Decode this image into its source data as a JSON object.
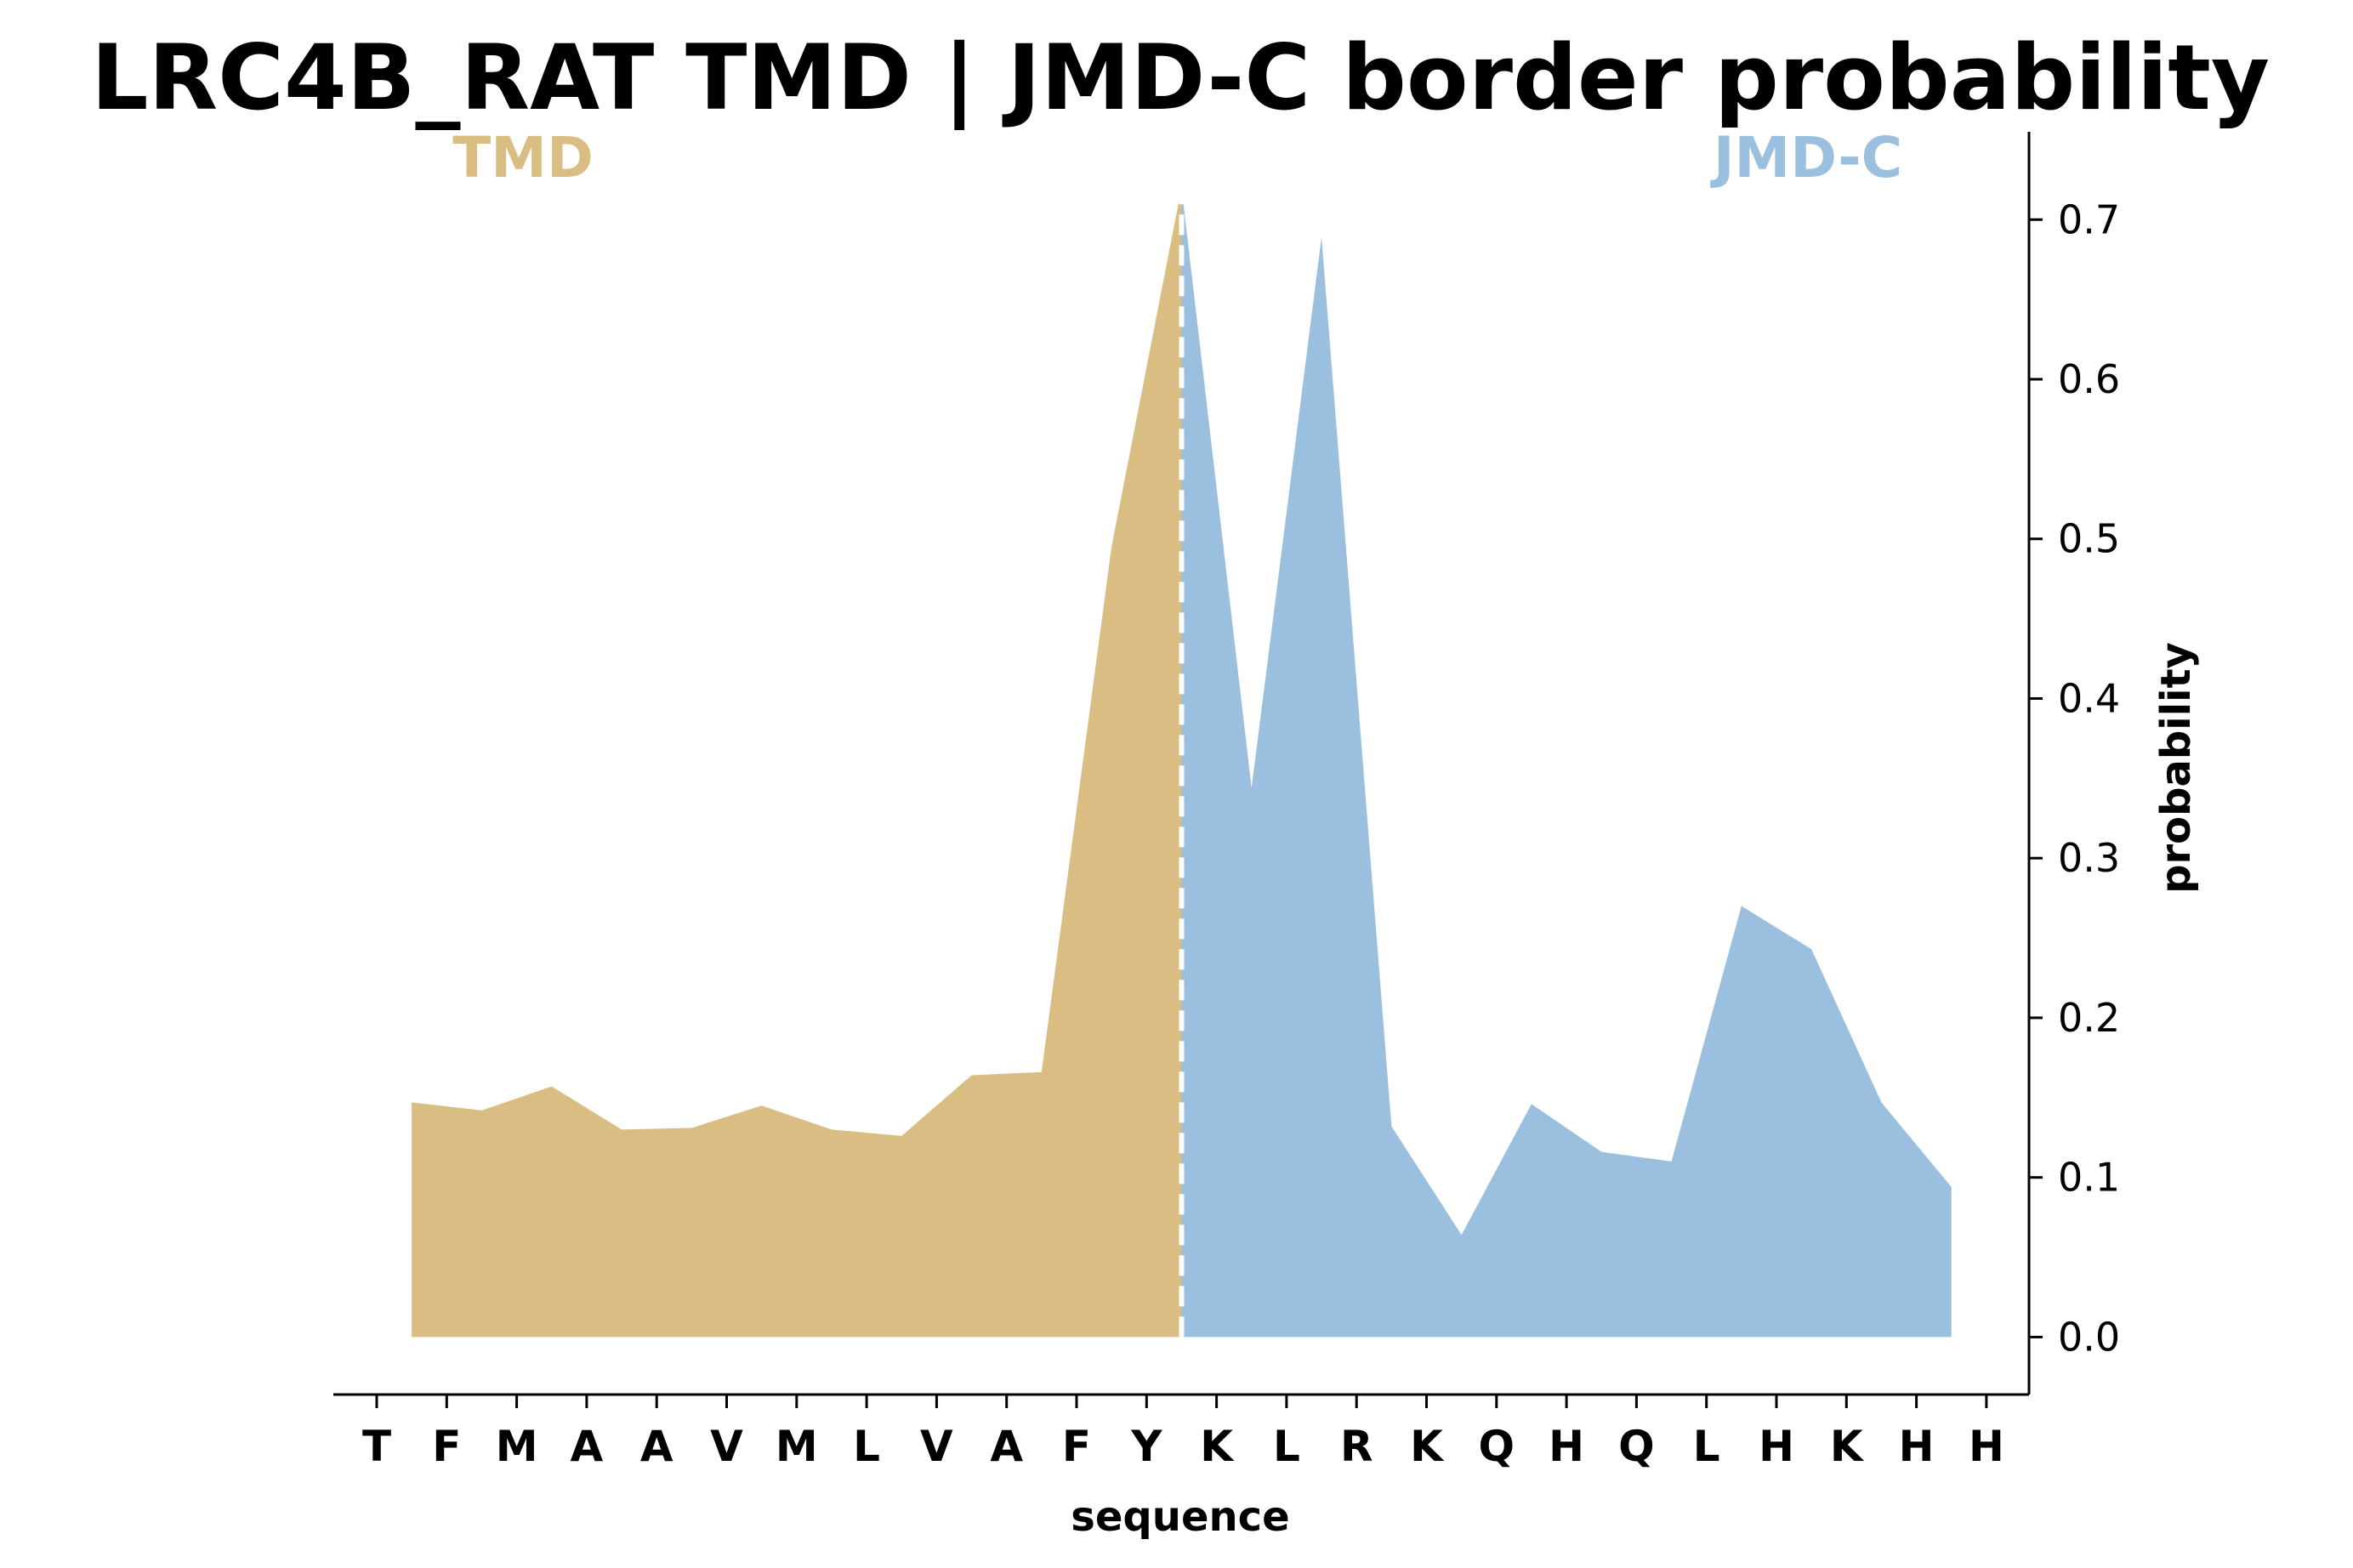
{
  "chart_data": {
    "type": "area",
    "title": "LRC4B_RAT TMD | JMD-C border probability",
    "xlabel": "sequence",
    "ylabel": "probability",
    "ylim": [
      -0.036,
      0.755
    ],
    "yticks": [
      "0.0",
      "0.1",
      "0.2",
      "0.3",
      "0.4",
      "0.5",
      "0.6",
      "0.7"
    ],
    "ytick_values": [
      0.0,
      0.1,
      0.2,
      0.3,
      0.4,
      0.5,
      0.6,
      0.7
    ],
    "y_axis_side": "right",
    "grid": false,
    "categories": [
      "T",
      "F",
      "M",
      "A",
      "A",
      "V",
      "M",
      "L",
      "V",
      "A",
      "F",
      "Y",
      "K",
      "L",
      "R",
      "K",
      "Q",
      "H",
      "Q",
      "L",
      "H",
      "K",
      "H",
      "H"
    ],
    "border_position": 11.5,
    "regions": [
      {
        "name": "TMD",
        "color": "#d9bd82"
      },
      {
        "name": "JMD-C",
        "color": "#9bc0df"
      }
    ],
    "series": [
      {
        "region": "TMD",
        "color": "#d9bd82",
        "points": [
          [
            0.5,
            0.147
          ],
          [
            1.5,
            0.142
          ],
          [
            2.5,
            0.157
          ],
          [
            3.5,
            0.13
          ],
          [
            4.5,
            0.131
          ],
          [
            5.5,
            0.145
          ],
          [
            6.5,
            0.13
          ],
          [
            7.5,
            0.126
          ],
          [
            8.5,
            0.164
          ],
          [
            9.5,
            0.166
          ],
          [
            10.5,
            0.495
          ],
          [
            11.5,
            0.72
          ]
        ]
      },
      {
        "region": "JMD-C",
        "color": "#9bc0df",
        "points": [
          [
            11.5,
            0.72
          ],
          [
            12.5,
            0.344
          ],
          [
            13.5,
            0.689
          ],
          [
            14.5,
            0.132
          ],
          [
            15.5,
            0.064
          ],
          [
            16.5,
            0.146
          ],
          [
            17.5,
            0.116
          ],
          [
            18.5,
            0.11
          ],
          [
            19.5,
            0.27
          ],
          [
            20.5,
            0.243
          ],
          [
            21.5,
            0.147
          ],
          [
            22.5,
            0.094
          ]
        ]
      }
    ],
    "border_line": {
      "style": "dashed",
      "color": "#ffffff"
    }
  }
}
